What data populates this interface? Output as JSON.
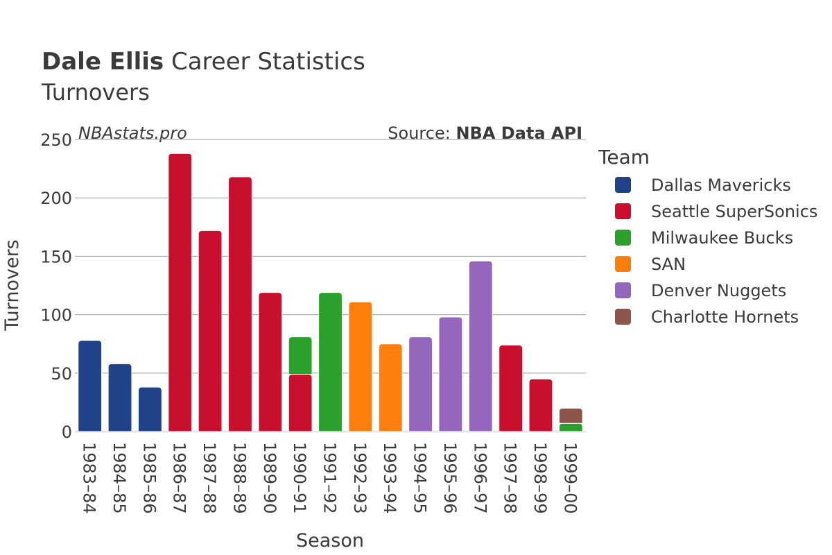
{
  "header": {
    "title_bold": "Dale Ellis",
    "title_rest": " Career Statistics",
    "subtitle": "Turnovers"
  },
  "watermark": "NBAstats.pro",
  "source": {
    "prefix": "Source: ",
    "name": "NBA Data API"
  },
  "legend": {
    "title": "Team",
    "items": [
      {
        "name": "Dallas Mavericks",
        "color": "#1f4288"
      },
      {
        "name": "Seattle SuperSonics",
        "color": "#c8102e"
      },
      {
        "name": "Milwaukee Bucks",
        "color": "#2ca02c"
      },
      {
        "name": "SAN",
        "color": "#ff7f0e"
      },
      {
        "name": "Denver Nuggets",
        "color": "#9467bd"
      },
      {
        "name": "Charlotte Hornets",
        "color": "#8c564b"
      }
    ]
  },
  "chart_data": {
    "type": "bar",
    "stacked": true,
    "xlabel": "Season",
    "ylabel": "Turnovers",
    "ylim": [
      0,
      250
    ],
    "yticks": [
      0,
      50,
      100,
      150,
      200,
      250
    ],
    "grid": true,
    "legend_position": "right",
    "categories": [
      "1983–84",
      "1984–85",
      "1985–86",
      "1986–87",
      "1987–88",
      "1988–89",
      "1989–90",
      "1990–91",
      "1991–92",
      "1992–93",
      "1993–94",
      "1994–95",
      "1995–96",
      "1996–97",
      "1997–98",
      "1998–99",
      "1999–00"
    ],
    "series": [
      {
        "name": "Dallas Mavericks",
        "color": "#1f4288",
        "values": [
          78,
          58,
          38,
          0,
          0,
          0,
          0,
          0,
          0,
          0,
          0,
          0,
          0,
          0,
          0,
          0,
          0
        ]
      },
      {
        "name": "Seattle SuperSonics",
        "color": "#c8102e",
        "values": [
          0,
          0,
          0,
          238,
          172,
          218,
          119,
          49,
          0,
          0,
          0,
          0,
          0,
          0,
          74,
          45,
          0
        ]
      },
      {
        "name": "Milwaukee Bucks",
        "color": "#2ca02c",
        "values": [
          0,
          0,
          0,
          0,
          0,
          0,
          0,
          32,
          119,
          0,
          0,
          0,
          0,
          0,
          0,
          0,
          7
        ]
      },
      {
        "name": "SAN",
        "color": "#ff7f0e",
        "values": [
          0,
          0,
          0,
          0,
          0,
          0,
          0,
          0,
          0,
          111,
          75,
          0,
          0,
          0,
          0,
          0,
          0
        ]
      },
      {
        "name": "Denver Nuggets",
        "color": "#9467bd",
        "values": [
          0,
          0,
          0,
          0,
          0,
          0,
          0,
          0,
          0,
          0,
          0,
          81,
          98,
          146,
          0,
          0,
          0
        ]
      },
      {
        "name": "Charlotte Hornets",
        "color": "#8c564b",
        "values": [
          0,
          0,
          0,
          0,
          0,
          0,
          0,
          0,
          0,
          0,
          0,
          0,
          0,
          0,
          0,
          0,
          13
        ]
      }
    ]
  }
}
